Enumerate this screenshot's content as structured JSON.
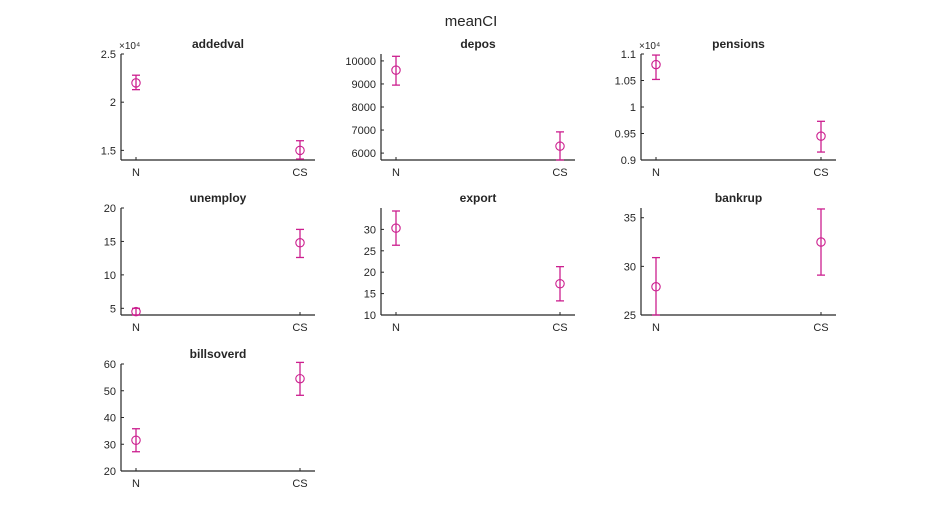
{
  "figure": {
    "suptitle": "meanCI",
    "marker_color": "#CC1F8F"
  },
  "chart_data": [
    {
      "type": "scatter",
      "title": "addedval",
      "categories": [
        "N",
        "CS"
      ],
      "exponent_label": "×10⁴",
      "ylim": [
        1.4,
        2.5
      ],
      "yticks": [
        1.5,
        2,
        2.5
      ],
      "ytick_labels": [
        "1.5",
        "2",
        "2.5"
      ],
      "means": [
        2.2,
        1.5
      ],
      "lower": [
        2.13,
        1.41
      ],
      "upper": [
        2.28,
        1.6
      ]
    },
    {
      "type": "scatter",
      "title": "depos",
      "categories": [
        "N",
        "CS"
      ],
      "exponent_label": "",
      "ylim": [
        5700,
        10300
      ],
      "yticks": [
        6000,
        7000,
        8000,
        9000,
        10000
      ],
      "ytick_labels": [
        "6000",
        "7000",
        "8000",
        "9000",
        "10000"
      ],
      "means": [
        9600,
        6300
      ],
      "lower": [
        8950,
        5700
      ],
      "upper": [
        10200,
        6920
      ]
    },
    {
      "type": "scatter",
      "title": "pensions",
      "categories": [
        "N",
        "CS"
      ],
      "exponent_label": "×10⁴",
      "ylim": [
        0.9,
        1.1
      ],
      "yticks": [
        0.9,
        0.95,
        1,
        1.05,
        1.1
      ],
      "ytick_labels": [
        "0.9",
        "0.95",
        "1",
        "1.05",
        "1.1"
      ],
      "means": [
        1.08,
        0.945
      ],
      "lower": [
        1.052,
        0.915
      ],
      "upper": [
        1.098,
        0.973
      ]
    },
    {
      "type": "scatter",
      "title": "unemploy",
      "categories": [
        "N",
        "CS"
      ],
      "exponent_label": "",
      "ylim": [
        4,
        20
      ],
      "yticks": [
        5,
        10,
        15,
        20
      ],
      "ytick_labels": [
        "5",
        "10",
        "15",
        "20"
      ],
      "means": [
        4.5,
        14.8
      ],
      "lower": [
        4.0,
        12.6
      ],
      "upper": [
        5.0,
        16.8
      ]
    },
    {
      "type": "scatter",
      "title": "export",
      "categories": [
        "N",
        "CS"
      ],
      "exponent_label": "",
      "ylim": [
        10,
        35
      ],
      "yticks": [
        10,
        15,
        20,
        25,
        30
      ],
      "ytick_labels": [
        "10",
        "15",
        "20",
        "25",
        "30"
      ],
      "means": [
        30.3,
        17.3
      ],
      "lower": [
        26.3,
        13.3
      ],
      "upper": [
        34.3,
        21.3
      ]
    },
    {
      "type": "scatter",
      "title": "bankrup",
      "categories": [
        "N",
        "CS"
      ],
      "exponent_label": "",
      "ylim": [
        25,
        36
      ],
      "yticks": [
        25,
        30,
        35
      ],
      "ytick_labels": [
        "25",
        "30",
        "35"
      ],
      "means": [
        27.9,
        32.5
      ],
      "lower": [
        25,
        29.1
      ],
      "upper": [
        30.9,
        35.9
      ]
    },
    {
      "type": "scatter",
      "title": "billsoverd",
      "categories": [
        "N",
        "CS"
      ],
      "exponent_label": "",
      "ylim": [
        20,
        60
      ],
      "yticks": [
        20,
        30,
        40,
        50,
        60
      ],
      "ytick_labels": [
        "20",
        "30",
        "40",
        "50",
        "60"
      ],
      "means": [
        31.5,
        54.5
      ],
      "lower": [
        27.2,
        48.3
      ],
      "upper": [
        35.8,
        60.6
      ]
    }
  ]
}
